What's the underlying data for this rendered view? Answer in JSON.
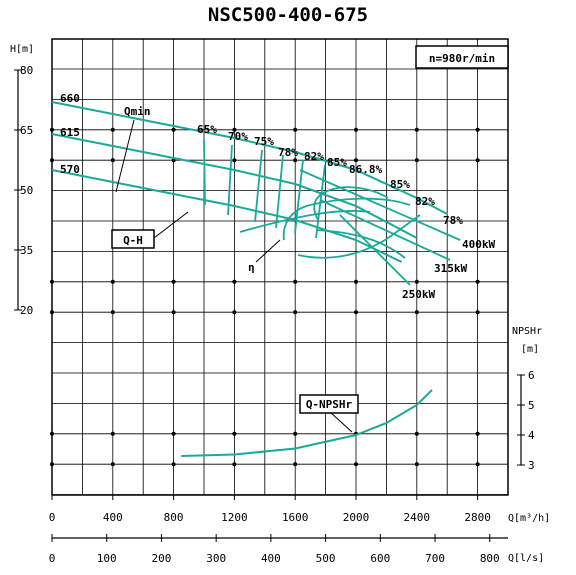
{
  "title": "NSC500-400-675",
  "speed_label": "n=980r/min",
  "colors": {
    "curve": "#1aa99a",
    "grid": "#000000",
    "frame": "#000000"
  },
  "axis_labels": {
    "head": "H[m]",
    "npsh": "NPSHr",
    "npsh_unit": "[m]",
    "flow_m3h": "Q[m³/h]",
    "flow_ls": "Q[l/s]"
  },
  "x_ticks_m3h": [
    "0",
    "400",
    "800",
    "1200",
    "1600",
    "2000",
    "2400",
    "2800"
  ],
  "x_ticks_ls": [
    "0",
    "100",
    "200",
    "300",
    "400",
    "500",
    "600",
    "700",
    "800"
  ],
  "h_ticks": [
    "80",
    "65",
    "50",
    "35",
    "20"
  ],
  "npsh_ticks": [
    "6",
    "5",
    "4",
    "3"
  ],
  "curve_labels": {
    "qmin": "Qmin",
    "qh": "Q-H",
    "eta": "η",
    "npsh": "Q-NPSHr"
  },
  "impeller_labels": [
    "660",
    "615",
    "570"
  ],
  "efficiency_labels": [
    "65%",
    "70%",
    "75%",
    "78%",
    "82%",
    "85%",
    "86.8%",
    "85%",
    "82%",
    "78%"
  ],
  "power_labels": [
    "400kW",
    "315kW",
    "250kW"
  ],
  "chart_data": {
    "type": "line",
    "x_unit": "m³/h",
    "x_range": [
      0,
      3000
    ],
    "head_range": [
      20,
      80
    ],
    "npsh_range": [
      3,
      6
    ],
    "series": [
      {
        "name": "660",
        "x": [
          0,
          400,
          800,
          1200,
          1600,
          2000,
          2400,
          2600
        ],
        "y": [
          72,
          69,
          66,
          63,
          59.5,
          55,
          48,
          44
        ]
      },
      {
        "name": "615",
        "x": [
          0,
          400,
          800,
          1200,
          1600,
          2000,
          2400
        ],
        "y": [
          64,
          61,
          58,
          55,
          51.5,
          46,
          38
        ]
      },
      {
        "name": "570",
        "x": [
          0,
          400,
          800,
          1200,
          1600,
          2000,
          2300
        ],
        "y": [
          55,
          52,
          49,
          46,
          42.5,
          37.5,
          32
        ]
      },
      {
        "name": "Q-NPSHr",
        "x": [
          850,
          1200,
          1600,
          2000,
          2200,
          2400,
          2500
        ],
        "y": [
          3.3,
          3.35,
          3.55,
          4.0,
          4.4,
          5.0,
          5.5
        ]
      }
    ]
  }
}
